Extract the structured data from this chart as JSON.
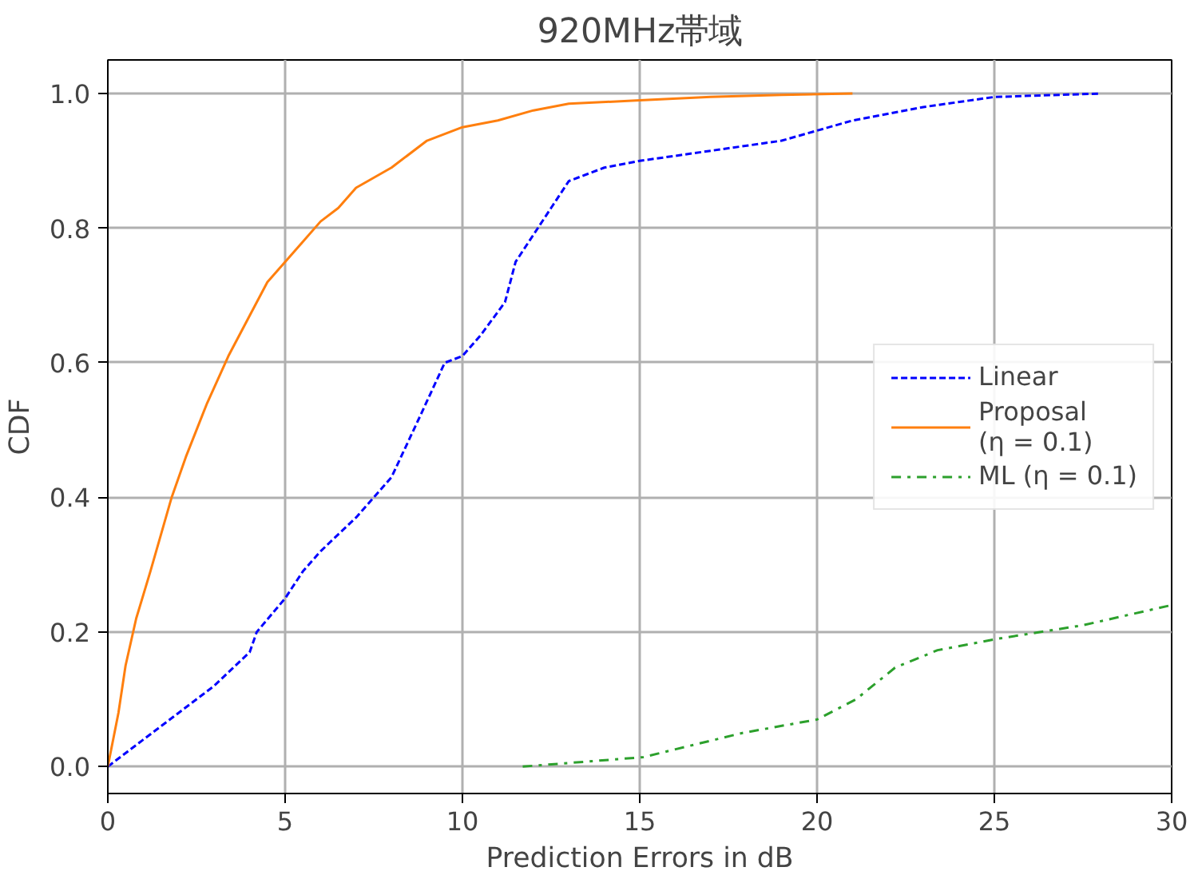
{
  "chart_data": {
    "type": "line",
    "title": "920MHz帯域",
    "xlabel": "Prediction Errors in dB",
    "ylabel": "CDF",
    "xlim": [
      0,
      30
    ],
    "ylim": [
      -0.04,
      1.05
    ],
    "xticks": [
      0,
      5,
      10,
      15,
      20,
      25,
      30
    ],
    "yticks": [
      {
        "value": 0,
        "label": "0.0"
      },
      {
        "value": 0.2,
        "label": "0.2"
      },
      {
        "value": 0.4,
        "label": "0.4"
      },
      {
        "value": 0.6,
        "label": "0.6"
      },
      {
        "value": 0.8,
        "label": "0.8"
      },
      {
        "value": 1,
        "label": "1.0"
      }
    ],
    "grid": true,
    "legend": "right",
    "marker": "none",
    "series": [
      {
        "name": "Linear",
        "color": "#0000ff",
        "line_style": "dashed",
        "x": [
          0,
          1,
          2,
          3,
          4,
          4.2,
          5,
          5.5,
          6,
          7,
          8,
          8.8,
          9.5,
          10,
          10.5,
          11.2,
          11.5,
          12,
          12.5,
          13,
          14,
          15,
          17,
          19,
          20,
          21,
          23,
          25,
          28
        ],
        "values": [
          0,
          0.04,
          0.08,
          0.12,
          0.17,
          0.2,
          0.25,
          0.29,
          0.32,
          0.37,
          0.43,
          0.52,
          0.6,
          0.61,
          0.64,
          0.69,
          0.75,
          0.79,
          0.83,
          0.87,
          0.89,
          0.9,
          0.915,
          0.93,
          0.945,
          0.96,
          0.98,
          0.995,
          1.0
        ]
      },
      {
        "name": "Proposal\n(η = 0.1)",
        "color": "#ff7f0e",
        "line_style": "solid",
        "x": [
          0,
          0.3,
          0.5,
          0.8,
          1.2,
          1.8,
          2.2,
          2.8,
          3.4,
          4,
          4.5,
          5,
          5.5,
          6,
          6.5,
          7,
          8,
          9,
          10,
          11,
          12,
          13,
          15,
          17,
          19,
          21
        ],
        "values": [
          0,
          0.08,
          0.15,
          0.22,
          0.29,
          0.4,
          0.46,
          0.54,
          0.61,
          0.67,
          0.72,
          0.75,
          0.78,
          0.81,
          0.83,
          0.86,
          0.89,
          0.93,
          0.95,
          0.96,
          0.975,
          0.985,
          0.99,
          0.995,
          0.998,
          1.0
        ]
      },
      {
        "name": "ML (η = 0.1)",
        "color": "#2ca02c",
        "line_style": "dashdot",
        "x": [
          11.7,
          15.1,
          17.9,
          20,
          21.1,
          22.2,
          23.4,
          25.1,
          27.5,
          30
        ],
        "values": [
          0,
          0.014,
          0.05,
          0.07,
          0.1,
          0.147,
          0.173,
          0.19,
          0.21,
          0.24
        ]
      }
    ]
  }
}
